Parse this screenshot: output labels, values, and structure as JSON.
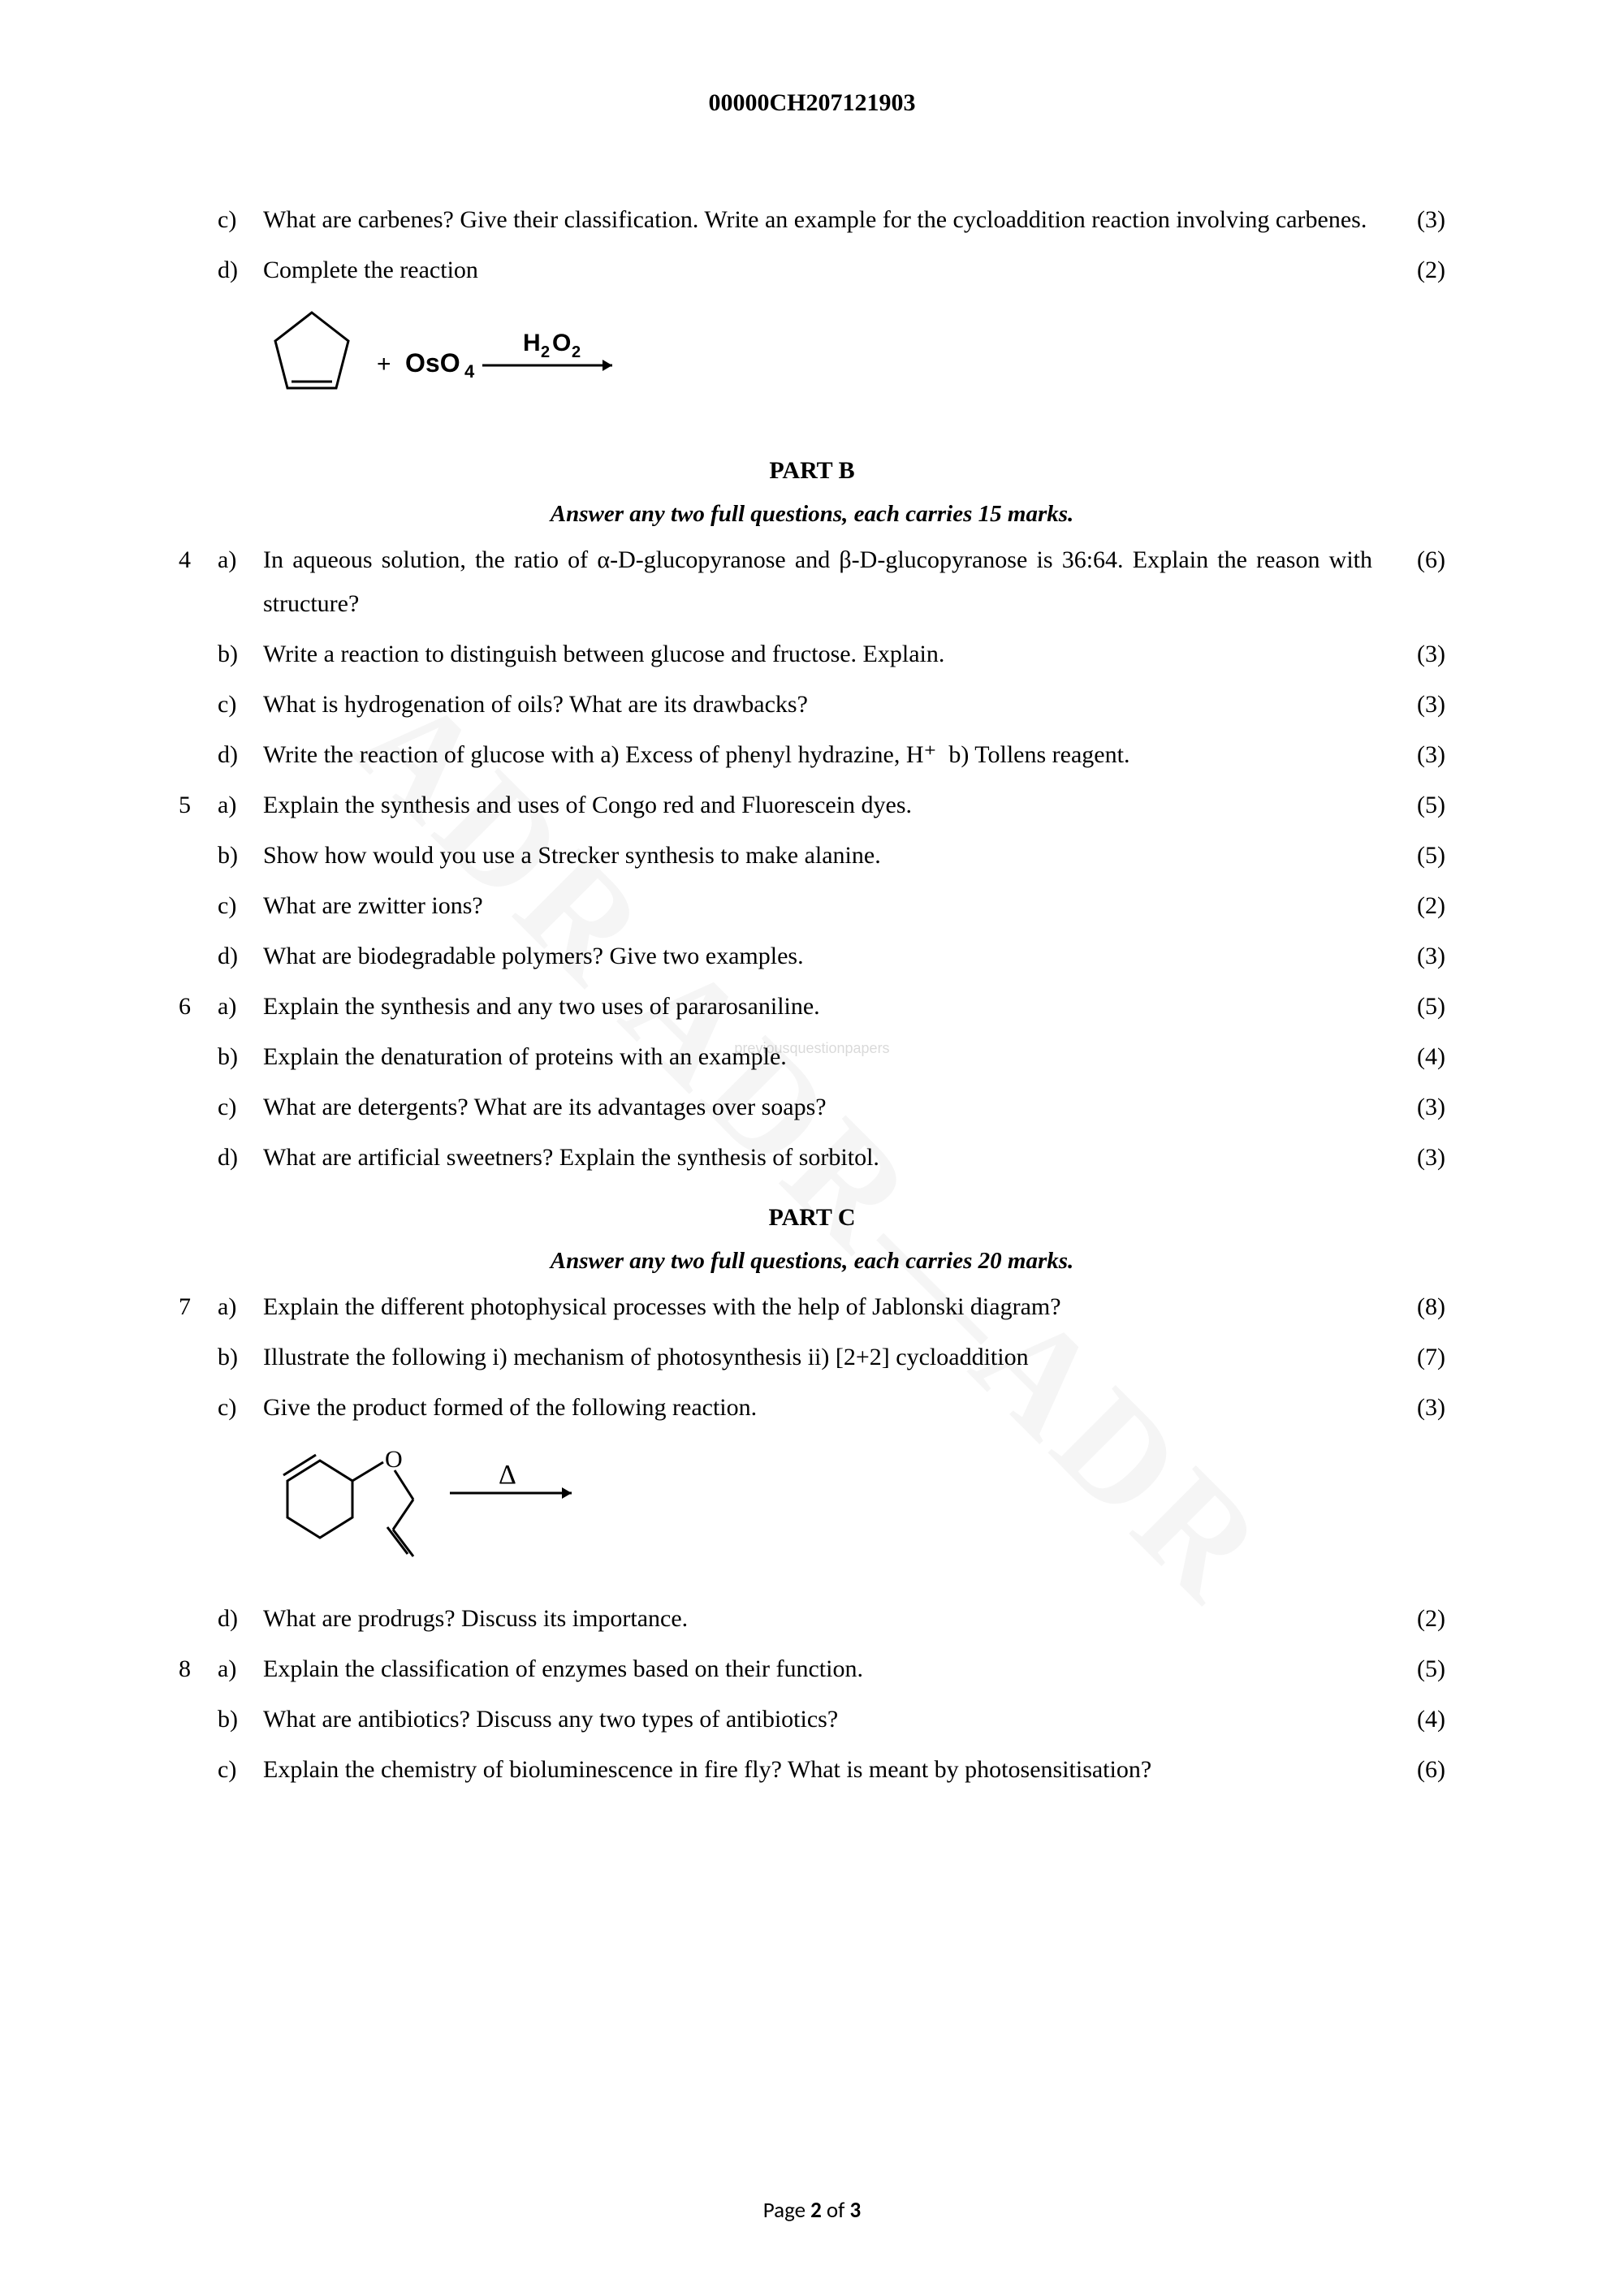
{
  "header": {
    "code": "00000CH207121903"
  },
  "watermark": {
    "main": "ADR ADR—ADR",
    "small": "previousquestionpapers"
  },
  "continued_questions": [
    {
      "qnum": "",
      "subpart": "c)",
      "text": "What are carbenes? Give their classification. Write an example for the cycloaddition reaction involving carbenes.",
      "marks": "(3)"
    },
    {
      "qnum": "",
      "subpart": "d)",
      "text": "Complete the reaction",
      "marks": "(2)",
      "has_reaction": true
    }
  ],
  "reaction1": {
    "reagent1": "OsO₄",
    "reagent2": "H₂O₂"
  },
  "partB": {
    "title": "PART B",
    "instruction": "Answer any two full questions, each carries 15 marks."
  },
  "partB_questions": [
    {
      "qnum": "4",
      "subpart": "a)",
      "text": "In aqueous solution, the ratio of α-D-glucopyranose and β-D-glucopyranose is 36:64. Explain the reason with structure?",
      "marks": "(6)",
      "justify": true
    },
    {
      "qnum": "",
      "subpart": "b)",
      "text": "Write a reaction to distinguish between glucose and fructose. Explain.",
      "marks": "(3)"
    },
    {
      "qnum": "",
      "subpart": "c)",
      "text": "What is hydrogenation of oils? What are its drawbacks?",
      "marks": "(3)"
    },
    {
      "qnum": "",
      "subpart": "d)",
      "text": "Write the reaction of glucose with a) Excess of phenyl hydrazine, H⁺  b) Tollens reagent.",
      "marks": "(3)",
      "justify": true
    },
    {
      "qnum": "5",
      "subpart": "a)",
      "text": "Explain the synthesis and uses of Congo red and Fluorescein dyes.",
      "marks": "(5)"
    },
    {
      "qnum": "",
      "subpart": "b)",
      "text": "Show how would you use a Strecker synthesis to make alanine.",
      "marks": "(5)"
    },
    {
      "qnum": "",
      "subpart": "c)",
      "text": "What are zwitter ions?",
      "marks": "(2)"
    },
    {
      "qnum": "",
      "subpart": "d)",
      "text": "What are biodegradable polymers? Give two examples.",
      "marks": "(3)"
    },
    {
      "qnum": "6",
      "subpart": "a)",
      "text": "Explain the synthesis and any two uses of pararosaniline.",
      "marks": "(5)"
    },
    {
      "qnum": "",
      "subpart": "b)",
      "text": "Explain the denaturation of proteins with an example.",
      "marks": "(4)"
    },
    {
      "qnum": "",
      "subpart": "c)",
      "text": "What are detergents? What are its advantages over soaps?",
      "marks": "(3)"
    },
    {
      "qnum": "",
      "subpart": "d)",
      "text": "What are artificial sweetners? Explain the synthesis of sorbitol.",
      "marks": "(3)"
    }
  ],
  "partC": {
    "title": "PART C",
    "instruction": "Answer any two full questions, each carries 20 marks."
  },
  "partC_questions": [
    {
      "qnum": "7",
      "subpart": "a)",
      "text": "Explain the different photophysical processes with the help of Jablonski diagram?",
      "marks": "(8)"
    },
    {
      "qnum": "",
      "subpart": "b)",
      "text": "Illustrate the following i) mechanism of photosynthesis ii) [2+2] cycloaddition",
      "marks": "(7)"
    },
    {
      "qnum": "",
      "subpart": "c)",
      "text": "Give the product formed of the following reaction.",
      "marks": "(3)",
      "has_reaction2": true
    },
    {
      "qnum": "",
      "subpart": "d)",
      "text": "What are prodrugs? Discuss its importance.",
      "marks": "(2)"
    },
    {
      "qnum": "8",
      "subpart": "a)",
      "text": "Explain the classification of enzymes based on their function.",
      "marks": "(5)"
    },
    {
      "qnum": "",
      "subpart": "b)",
      "text": "What are antibiotics? Discuss any two types of antibiotics?",
      "marks": "(4)"
    },
    {
      "qnum": "",
      "subpart": "c)",
      "text": "Explain the chemistry of bioluminescence in fire fly? What is meant by photosensitisation?",
      "marks": "(6)",
      "justify": true
    }
  ],
  "reaction2": {
    "delta": "Δ"
  },
  "footer": {
    "prefix": "Page ",
    "current": "2",
    "of": " of ",
    "total": "3"
  }
}
